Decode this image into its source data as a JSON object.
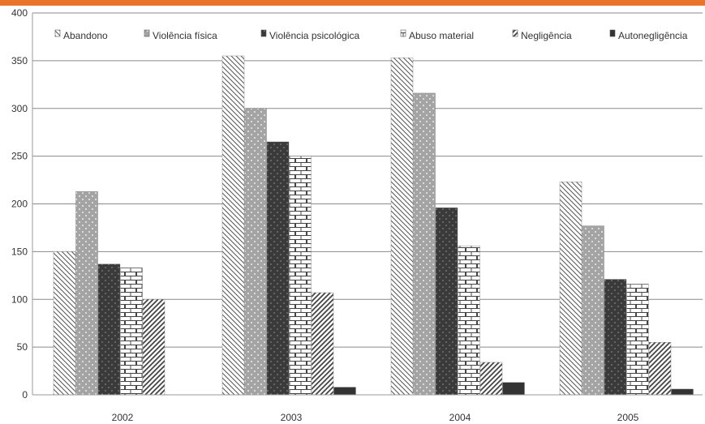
{
  "header_bar": {
    "color": "#e8752a"
  },
  "chart_data": {
    "type": "bar",
    "categories": [
      "2002",
      "2003",
      "2004",
      "2005"
    ],
    "ylim": [
      0,
      400
    ],
    "yticks": [
      0,
      50,
      100,
      150,
      200,
      250,
      300,
      350,
      400
    ],
    "grid": true,
    "legend": "top",
    "series": [
      {
        "name": "Abandono",
        "values": [
          150,
          355,
          353,
          223
        ],
        "pattern": "diag-light",
        "color": "#555555"
      },
      {
        "name": "Violência física",
        "values": [
          213,
          300,
          316,
          177
        ],
        "pattern": "dots",
        "color": "#9a9a9a"
      },
      {
        "name": "Violência psicológica",
        "values": [
          137,
          265,
          196,
          121
        ],
        "pattern": "dots-dark",
        "color": "#3a3a3a"
      },
      {
        "name": "Abuso material",
        "values": [
          133,
          250,
          156,
          116
        ],
        "pattern": "bricks",
        "color": "#444444"
      },
      {
        "name": "Negligência",
        "values": [
          100,
          107,
          34,
          55
        ],
        "pattern": "diag-heavy",
        "color": "#444444"
      },
      {
        "name": "Autonegligência",
        "values": [
          0,
          8,
          13,
          6
        ],
        "pattern": "solid",
        "color": "#333333"
      }
    ]
  }
}
